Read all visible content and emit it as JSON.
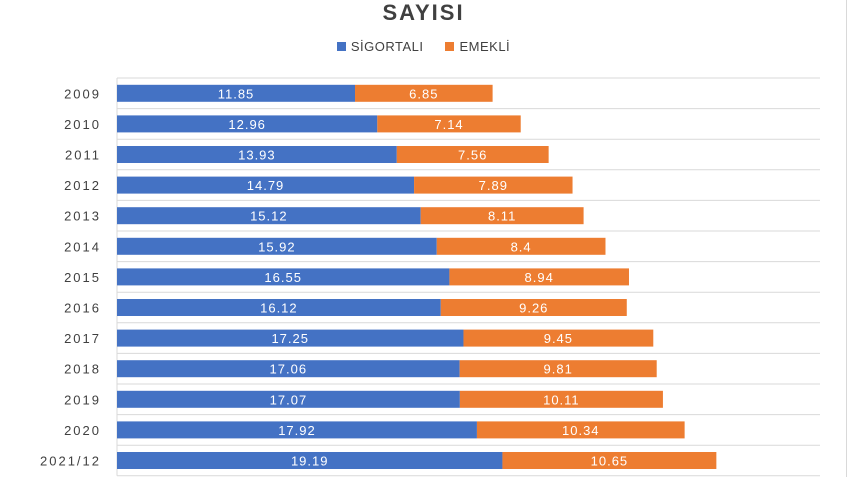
{
  "chart_data": {
    "type": "bar",
    "orientation": "horizontal",
    "stacked": true,
    "title": "SAYISI",
    "xlabel": "",
    "ylabel": "",
    "categories": [
      "2009",
      "2010",
      "2011",
      "2012",
      "2013",
      "2014",
      "2015",
      "2016",
      "2017",
      "2018",
      "2019",
      "2020",
      "2021/12"
    ],
    "series": [
      {
        "name": "SİGORTALI",
        "color": "#4472C4",
        "values": [
          11.85,
          12.96,
          13.93,
          14.79,
          15.12,
          15.92,
          16.55,
          16.12,
          17.25,
          17.06,
          17.07,
          17.92,
          19.19
        ],
        "labels": [
          "11.85",
          "12.96",
          "13.93",
          "14.79",
          "15.12",
          "15.92",
          "16.55",
          "16.12",
          "17.25",
          "17.06",
          "17.07",
          "17.92",
          "19.19"
        ]
      },
      {
        "name": "EMEKLİ",
        "color": "#ED7D31",
        "values": [
          6.85,
          7.14,
          7.56,
          7.89,
          8.11,
          8.4,
          8.94,
          9.26,
          9.45,
          9.81,
          10.11,
          10.34,
          10.65
        ],
        "labels": [
          "6.85",
          "7.14",
          "7.56",
          "7.89",
          "8.11",
          "8.4",
          "8.94",
          "9.26",
          "9.45",
          "9.81",
          "10.11",
          "10.34",
          "10.65"
        ]
      }
    ],
    "xlim": [
      0,
      35
    ],
    "grid": true,
    "legend_position": "top"
  }
}
